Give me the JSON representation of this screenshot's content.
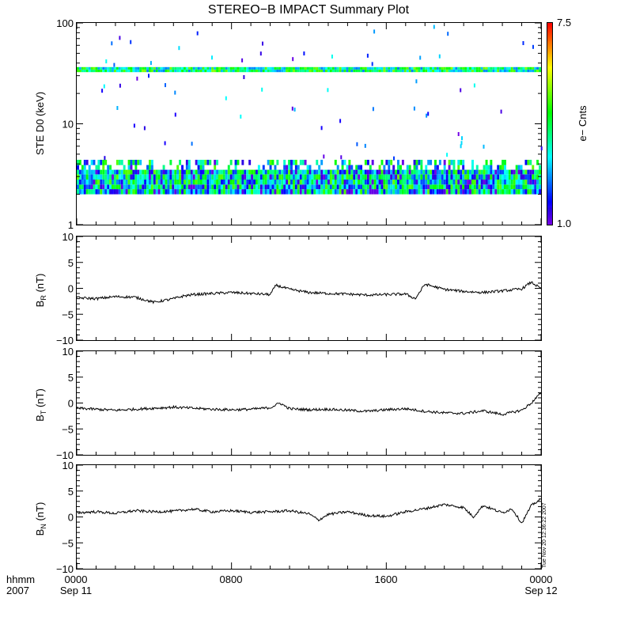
{
  "title": "STEREO−B IMPACT Summary Plot",
  "timestamp": "Tue Nov 20 12:36:22 2007",
  "x_axis": {
    "row1": [
      "hhmm",
      "0000",
      "0800",
      "1600",
      "0000"
    ],
    "row2": [
      "2007",
      "Sep 11",
      "",
      "",
      "Sep 12"
    ],
    "hours": [
      0,
      8,
      16,
      24
    ]
  },
  "chart_data": [
    {
      "type": "heatmap",
      "ylabel": "STE D0 (keV)",
      "yscale": "log",
      "ylim": [
        1,
        100
      ],
      "yticks": [
        "1",
        "10",
        "100"
      ],
      "xlim_hours": [
        0,
        24
      ],
      "colorbar": {
        "label": "e− Cnts",
        "min": "1.0",
        "max": "7.5",
        "colormap": "rainbow"
      },
      "features": [
        {
          "band": "~2–4 keV",
          "coverage": "continuous, 0000–2400",
          "counts": "mostly 2–5"
        },
        {
          "band": "~33–37 keV",
          "coverage": "continuous, 0000–2400",
          "counts": "mostly 3–5"
        }
      ]
    },
    {
      "type": "line",
      "ylabel": "B_R (nT)",
      "ylim": [
        -10,
        10
      ],
      "yticks": [
        "10",
        "5",
        "0",
        "−5",
        "−10"
      ],
      "x_hours": [
        0,
        1,
        2,
        3,
        4,
        5,
        5.5,
        6,
        7,
        8,
        9,
        10,
        10.3,
        11,
        12,
        13,
        14,
        15,
        16,
        17,
        17.5,
        18,
        19,
        20,
        21,
        22,
        23,
        23.5,
        24
      ],
      "y": [
        -1.8,
        -2.0,
        -1.6,
        -1.7,
        -2.7,
        -2.0,
        -1.5,
        -1.2,
        -1.0,
        -0.8,
        -1.0,
        -1.2,
        0.6,
        -0.2,
        -0.8,
        -1.0,
        -1.1,
        -1.3,
        -1.2,
        -1.1,
        -2.0,
        0.8,
        -0.2,
        -0.6,
        -0.8,
        -0.5,
        -0.1,
        1.2,
        -0.1
      ]
    },
    {
      "type": "line",
      "ylabel": "B_T (nT)",
      "ylim": [
        -10,
        10
      ],
      "yticks": [
        "10",
        "5",
        "0",
        "−5",
        "−10"
      ],
      "x_hours": [
        0,
        1,
        2,
        3,
        4,
        5,
        6,
        7,
        8,
        9,
        10,
        10.5,
        11,
        12,
        13,
        14,
        15,
        16,
        17,
        18,
        19,
        20,
        21,
        22,
        23,
        23.5,
        24
      ],
      "y": [
        -1.0,
        -1.2,
        -1.4,
        -1.2,
        -1.0,
        -0.8,
        -1.0,
        -1.2,
        -1.3,
        -1.2,
        -0.9,
        0.0,
        -1.1,
        -1.3,
        -1.2,
        -1.4,
        -1.6,
        -1.3,
        -1.1,
        -1.6,
        -1.9,
        -2.0,
        -1.5,
        -2.2,
        -1.4,
        0.0,
        2.0
      ]
    },
    {
      "type": "line",
      "ylabel": "B_N (nT)",
      "ylim": [
        -10,
        10
      ],
      "yticks": [
        "10",
        "5",
        "0",
        "−5",
        "−10"
      ],
      "x_hours": [
        0,
        1,
        2,
        3,
        4,
        5,
        6,
        7,
        8,
        9,
        10,
        11,
        12,
        12.5,
        13,
        14,
        15,
        16,
        17,
        18,
        19,
        20,
        20.5,
        21,
        22,
        22.5,
        23,
        23.5,
        24
      ],
      "y": [
        0.8,
        1.0,
        0.7,
        1.2,
        1.0,
        1.1,
        1.5,
        1.0,
        1.2,
        0.9,
        1.0,
        1.2,
        0.6,
        -0.6,
        0.5,
        1.0,
        0.3,
        0.1,
        1.0,
        1.6,
        2.4,
        1.8,
        0.0,
        2.2,
        0.8,
        1.6,
        -1.2,
        2.2,
        3.5
      ]
    }
  ]
}
